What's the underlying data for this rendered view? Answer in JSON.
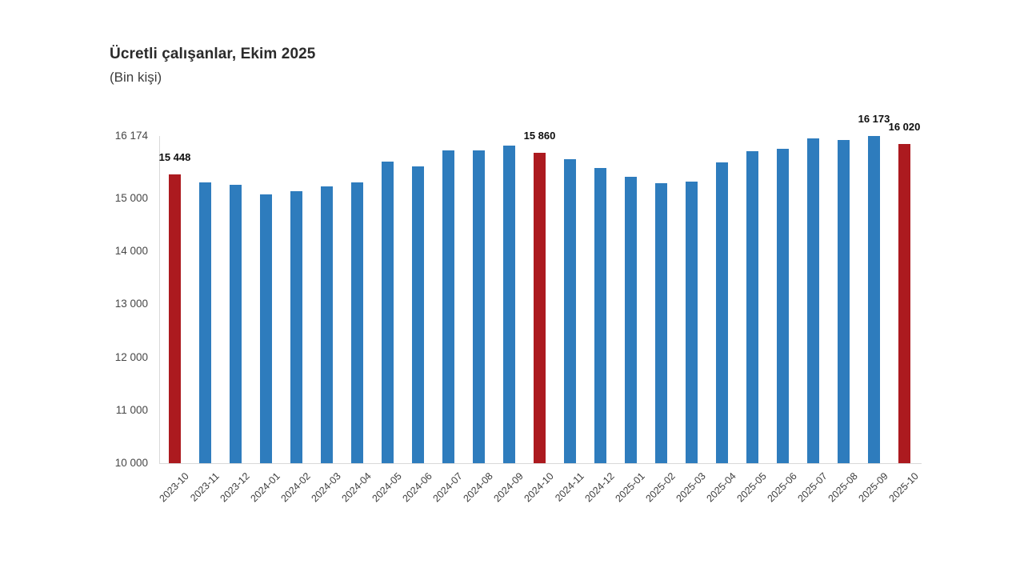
{
  "header": {
    "title": "Ücretli çalışanlar, Ekim 2025",
    "subtitle": "(Bin kişi)"
  },
  "chart_data": {
    "type": "bar",
    "title": "Ücretli çalışanlar, Ekim 2025",
    "subtitle": "(Bin kişi)",
    "unit": "Bin kişi",
    "categories": [
      "2023-10",
      "2023-11",
      "2023-12",
      "2024-01",
      "2024-02",
      "2024-03",
      "2024-04",
      "2024-05",
      "2024-06",
      "2024-07",
      "2024-08",
      "2024-09",
      "2024-10",
      "2024-11",
      "2024-12",
      "2025-01",
      "2025-02",
      "2025-03",
      "2025-04",
      "2025-05",
      "2025-06",
      "2025-07",
      "2025-08",
      "2025-09",
      "2025-10"
    ],
    "values": [
      15448,
      15295,
      15255,
      15070,
      15140,
      15220,
      15295,
      15690,
      15610,
      15910,
      15900,
      15990,
      15860,
      15740,
      15575,
      15410,
      15290,
      15320,
      15675,
      15885,
      15935,
      16130,
      16100,
      16173,
      16020
    ],
    "highlighted_categories": [
      "2023-10",
      "2024-10",
      "2025-10"
    ],
    "bar_labels": {
      "2023-10": "15 448",
      "2024-10": "15 860",
      "2025-09": "16 173",
      "2025-10": "16 020"
    },
    "y_axis": {
      "min": 10000,
      "max": 16174,
      "ticks": [
        {
          "value": 16174,
          "label": "16 174"
        },
        {
          "value": 15000,
          "label": "15 000"
        },
        {
          "value": 14000,
          "label": "14 000"
        },
        {
          "value": 13000,
          "label": "13 000"
        },
        {
          "value": 12000,
          "label": "12 000"
        },
        {
          "value": 11000,
          "label": "11 000"
        },
        {
          "value": 10000,
          "label": "10 000"
        }
      ]
    },
    "legend": "none",
    "grid": "off",
    "colors": {
      "bar": "#2E7CBD",
      "highlight": "#AC1A1F",
      "axis": "#D9D9D9"
    }
  }
}
